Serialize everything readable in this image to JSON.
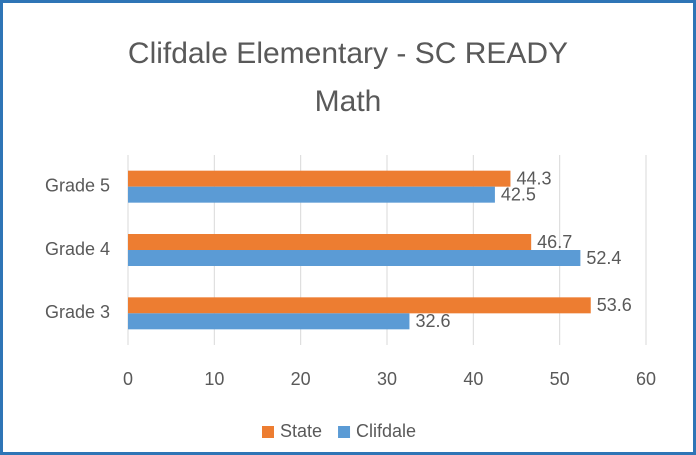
{
  "chart_data": {
    "type": "barh",
    "title": "Clifdale Elementary - SC READY Math",
    "categories": [
      "Grade 5",
      "Grade 4",
      "Grade 3"
    ],
    "series": [
      {
        "name": "State",
        "color": "#ED7D31",
        "values": [
          44.3,
          46.7,
          53.6
        ]
      },
      {
        "name": "Clifdale",
        "color": "#5B9BD5",
        "values": [
          42.5,
          52.4,
          32.6
        ]
      }
    ],
    "xlim": [
      0,
      60
    ],
    "xticks": [
      0,
      10,
      20,
      30,
      40,
      50,
      60
    ],
    "grid": true,
    "legend": "bottom"
  }
}
